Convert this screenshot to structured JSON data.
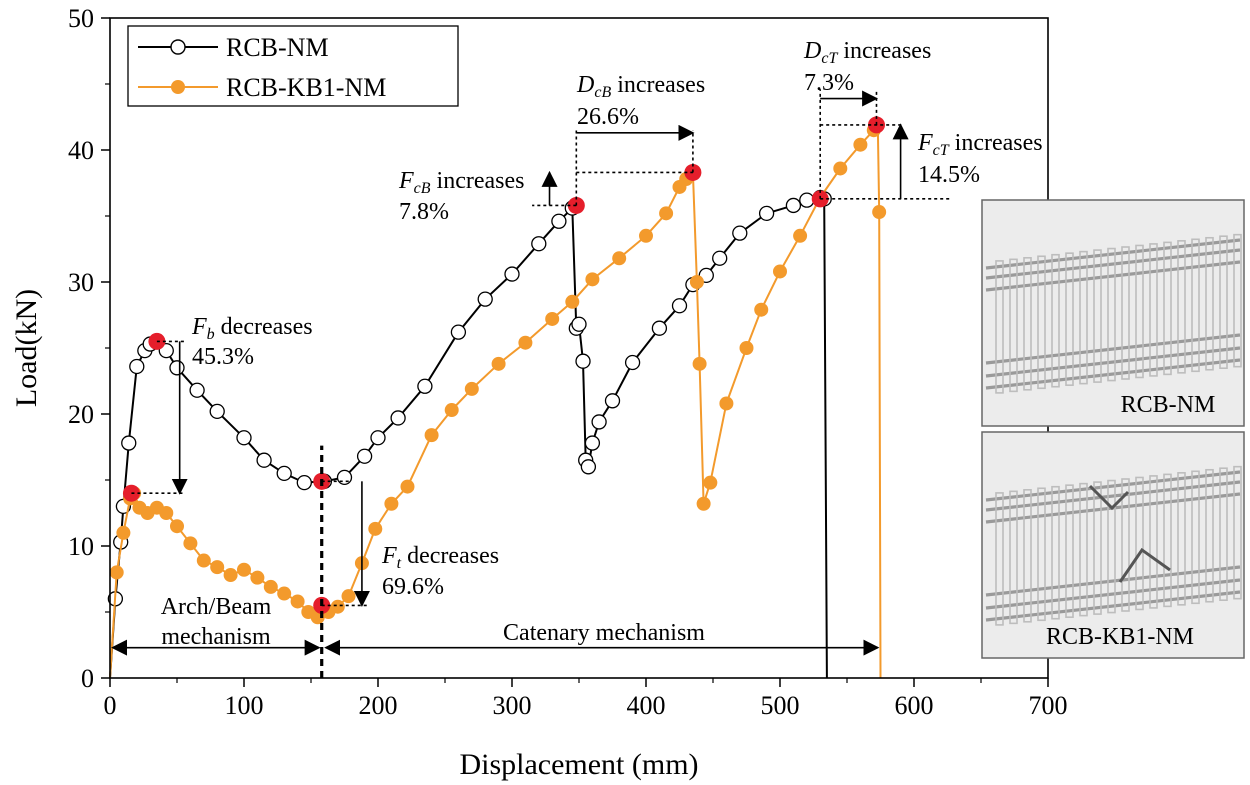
{
  "chart_data": {
    "type": "line",
    "xlabel": "Displacement (mm)",
    "ylabel": "Load(kN)",
    "xlim": [
      0,
      700
    ],
    "ylim": [
      0,
      50
    ],
    "x_ticks": [
      "0",
      "100",
      "200",
      "300",
      "400",
      "500",
      "600",
      "700"
    ],
    "y_ticks": [
      "0",
      "10",
      "20",
      "30",
      "40",
      "50"
    ],
    "grid": false,
    "legend_position": "top-left",
    "series": [
      {
        "name": "RCB-NM",
        "color": "#000000",
        "marker": "open-circle",
        "x": [
          0,
          4,
          8,
          10,
          14,
          20,
          26,
          30,
          35,
          42,
          50,
          65,
          80,
          100,
          115,
          130,
          145,
          160,
          175,
          190,
          200,
          215,
          235,
          260,
          280,
          300,
          320,
          335,
          345,
          348,
          350,
          353,
          355,
          357,
          360,
          365,
          375,
          390,
          410,
          425,
          435,
          445,
          455,
          470,
          490,
          510,
          520,
          530,
          533,
          535
        ],
        "y": [
          0,
          6,
          10.3,
          13,
          17.8,
          23.6,
          24.8,
          25.3,
          25.5,
          24.8,
          23.5,
          21.8,
          20.2,
          18.2,
          16.5,
          15.5,
          14.8,
          14.9,
          15.2,
          16.8,
          18.2,
          19.7,
          22.1,
          26.2,
          28.7,
          30.6,
          32.9,
          34.6,
          35.6,
          26.5,
          26.8,
          24,
          16.5,
          16,
          17.8,
          19.4,
          21,
          23.9,
          26.5,
          28.2,
          29.8,
          30.5,
          31.8,
          33.7,
          35.2,
          35.8,
          36.2,
          36.4,
          36.3,
          0
        ]
      },
      {
        "name": "RCB-KB1-NM",
        "color": "#F39A2C",
        "marker": "filled-circle",
        "x": [
          0,
          5,
          10,
          15,
          18,
          22,
          28,
          35,
          42,
          50,
          60,
          70,
          80,
          90,
          100,
          110,
          120,
          130,
          140,
          148,
          155,
          158,
          163,
          170,
          178,
          188,
          198,
          210,
          222,
          240,
          255,
          270,
          290,
          310,
          330,
          345,
          360,
          380,
          400,
          415,
          425,
          430,
          435,
          438,
          440,
          443,
          448,
          460,
          475,
          486,
          500,
          515,
          530,
          545,
          560,
          570,
          573,
          574,
          575
        ],
        "y": [
          0,
          8,
          11,
          13.6,
          14,
          12.9,
          12.5,
          12.9,
          12.5,
          11.5,
          10.2,
          8.9,
          8.4,
          7.8,
          8.2,
          7.6,
          6.9,
          6.4,
          5.8,
          5.0,
          4.6,
          5.5,
          5.0,
          5.4,
          6.2,
          8.7,
          11.3,
          13.2,
          14.5,
          18.4,
          20.3,
          21.9,
          23.8,
          25.4,
          27.2,
          28.5,
          30.2,
          31.8,
          33.5,
          35.2,
          37.2,
          37.8,
          38.3,
          30.0,
          23.8,
          13.2,
          14.8,
          20.8,
          25.0,
          27.9,
          30.8,
          33.5,
          36.4,
          38.6,
          40.4,
          41.5,
          41.9,
          35.3,
          0
        ]
      }
    ],
    "highlight_points": [
      {
        "x": 35,
        "y": 25.5
      },
      {
        "x": 16,
        "y": 14
      },
      {
        "x": 158,
        "y": 14.9
      },
      {
        "x": 158,
        "y": 5.5
      },
      {
        "x": 348,
        "y": 35.8
      },
      {
        "x": 435,
        "y": 38.3
      },
      {
        "x": 530,
        "y": 36.3
      },
      {
        "x": 572,
        "y": 41.9
      }
    ],
    "annotations": {
      "fb_name": "F",
      "fb_sub": "b",
      "fb_text": " decreases",
      "fb_pct": "45.3%",
      "ft_name": "F",
      "ft_sub": "t",
      "ft_text": " decreases",
      "ft_pct": "69.6%",
      "fcb_name": "F",
      "fcb_sub": "cB",
      "fcb_text": " increases",
      "fcb_pct": "7.8%",
      "dcb_name": "D",
      "dcb_sub": "cB",
      "dcb_text": " increases",
      "dcb_pct": "26.6%",
      "dct_name": "D",
      "dct_sub": "cT",
      "dct_text": " increases",
      "dct_pct": "7.3%",
      "fct_name": "F",
      "fct_sub": "cT",
      "fct_text": " increases",
      "fct_pct": "14.5%",
      "arch_line1": "Arch/Beam",
      "arch_line2": "mechanism",
      "catenary": "Catenary mechanism"
    },
    "insets": [
      {
        "label": "RCB-NM"
      },
      {
        "label": "RCB-KB1-NM"
      }
    ]
  }
}
